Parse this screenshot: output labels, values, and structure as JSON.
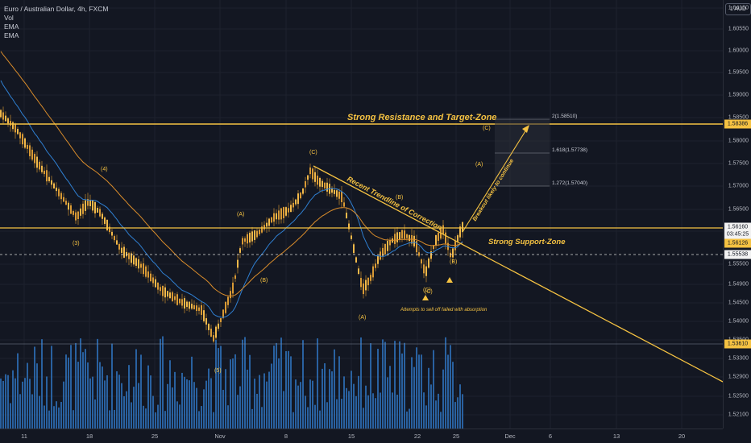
{
  "legend": {
    "symbol": "Euro / Australian Dollar, 4h, FXCM",
    "indicators": [
      "Vol",
      "EMA",
      "EMA"
    ]
  },
  "currency_button": "1 AUD",
  "price_axis": {
    "ticks": [
      "1.64150",
      "1.60550",
      "1.60000",
      "1.59500",
      "1.59000",
      "1.58500",
      "1.58000",
      "1.57500",
      "1.57000",
      "1.56500",
      "1.56000",
      "1.55500",
      "1.54900",
      "1.54500",
      "1.54000",
      "1.53500",
      "1.53300",
      "1.52900",
      "1.52500",
      "1.52100"
    ],
    "tags": [
      {
        "value": "1.58386",
        "style": "resistance"
      },
      {
        "value": "1.56160",
        "style": "current"
      },
      {
        "value": "03:45:25",
        "style": "current-timer"
      },
      {
        "value": "1.56126",
        "style": "support"
      },
      {
        "value": "1.55538",
        "style": "dashed"
      },
      {
        "value": "1.53610",
        "style": "volume"
      }
    ]
  },
  "time_axis": {
    "ticks": [
      "11",
      "18",
      "25",
      "Nov",
      "8",
      "15",
      "22",
      "25",
      "Dec",
      "6",
      "13",
      "20"
    ]
  },
  "annotations": {
    "resistance_label": "Strong Resistance and Target-Zone",
    "support_label": "Strong Support-Zone",
    "trendline_label": "Recent Trendline of Correction",
    "breakout_label": "Breakout likely to continue",
    "absorption_note": "Attempts to sell off failed with absorption",
    "waves": [
      "(4)",
      "(3)",
      "(5)",
      "(A)",
      "(B)",
      "(C)",
      "(A)",
      "(B)",
      "(C)",
      "(B)",
      "(C)",
      "(A)",
      "(C)"
    ],
    "fib_levels": [
      "2(1.58510)",
      "1.618(1.57738)",
      "1.272(1.57040)"
    ]
  },
  "colors": {
    "background": "#131722",
    "bull_candle": "#f2b94a",
    "bear_candle": "#f2b94a",
    "ema_fast": "#2f7fd1",
    "ema_slow": "#d98c2b",
    "annotation": "#f5c242",
    "volume": "#2e6fb6",
    "trendline": "#f5c242"
  }
}
